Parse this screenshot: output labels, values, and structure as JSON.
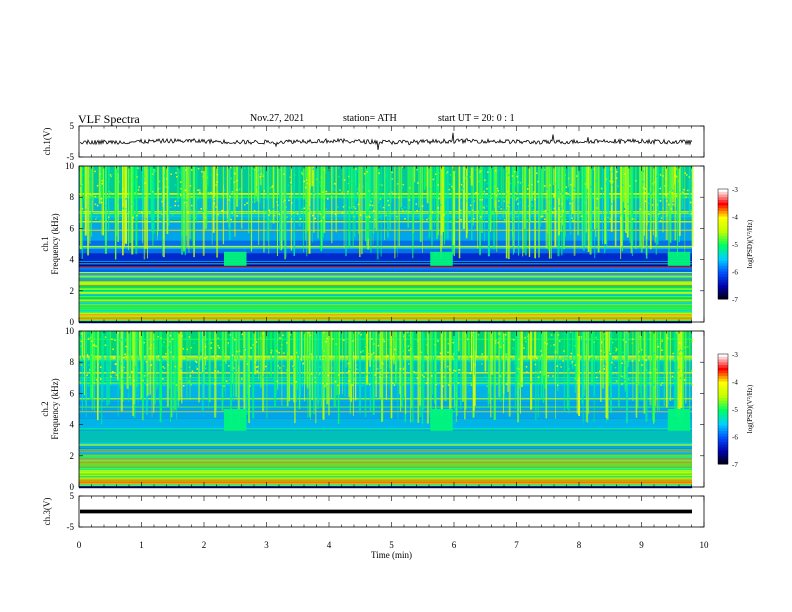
{
  "header": {
    "title": "VLF  Spectra",
    "date": "Nov.27, 2021",
    "station": "station= ATH",
    "start": "start  UT  =    20: 0   : 1"
  },
  "chart_data": [
    {
      "type": "line",
      "panel": "ch1-waveform",
      "ylabel": "ch.1(V)",
      "yticks": [
        "5",
        "-5"
      ],
      "ylim": [
        -5,
        5
      ],
      "xlim": [
        0,
        10
      ]
    },
    {
      "type": "heatmap",
      "panel": "ch1-spectrogram",
      "ylabel": "ch.1\nFrequency  (kHz)",
      "ylabel_line1": "ch.1",
      "ylabel_line2": "Frequency  (kHz)",
      "yticks": [
        "0",
        "2",
        "4",
        "6",
        "8",
        "10"
      ],
      "ylim": [
        0,
        10
      ],
      "xlim": [
        0,
        10
      ],
      "colorbar": {
        "label": "log(PSD)(V²/Hz)",
        "ticks": [
          "-3",
          "-4",
          "-5",
          "-6",
          "-7"
        ],
        "range": [
          -7,
          -3
        ]
      }
    },
    {
      "type": "heatmap",
      "panel": "ch2-spectrogram",
      "ylabel_line1": "ch.2",
      "ylabel_line2": "Frequency  (kHz)",
      "yticks": [
        "0",
        "2",
        "4",
        "6",
        "8",
        "10"
      ],
      "ylim": [
        0,
        10
      ],
      "xlim": [
        0,
        10
      ],
      "colorbar": {
        "label": "log(PSD)(V²/Hz)",
        "ticks": [
          "-3",
          "-4",
          "-5",
          "-6",
          "-7"
        ],
        "range": [
          -7,
          -3
        ]
      }
    },
    {
      "type": "line",
      "panel": "ch3-waveform",
      "ylabel": "ch.3(V)",
      "yticks": [
        "5",
        "-5"
      ],
      "ylim": [
        -5,
        5
      ],
      "xlim": [
        0,
        10
      ]
    }
  ],
  "xaxis": {
    "label": "Time  (min)",
    "ticks": [
      "0",
      "1",
      "2",
      "3",
      "4",
      "5",
      "6",
      "7",
      "8",
      "9",
      "10"
    ]
  },
  "colors": {
    "background_dark": "#0a0a6e",
    "cmap": [
      "#000000",
      "#0000aa",
      "#0050ff",
      "#00d0ff",
      "#00ff60",
      "#c0ff00",
      "#ffff00",
      "#ff0000",
      "#ffffff"
    ]
  }
}
